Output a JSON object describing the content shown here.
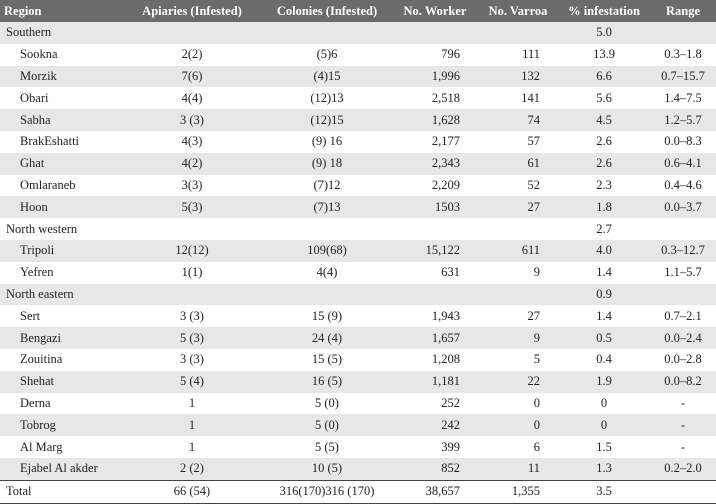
{
  "table": {
    "columns": [
      "Region",
      "Apiaries (Infested)",
      "Colonies (Infested)",
      "No. Worker",
      "No. Varroa",
      "% infestation",
      "Range"
    ],
    "rows": [
      {
        "region": "Southern",
        "infestation": "5.0"
      },
      {
        "cells": [
          "Sookna",
          "2(2)",
          "(5)6",
          "796",
          "111",
          "13.9",
          "0.3–1.8"
        ]
      },
      {
        "cells": [
          "Morzik",
          "7(6)",
          "(4)15",
          "1,996",
          "132",
          "6.6",
          "0.7–15.7"
        ]
      },
      {
        "cells": [
          "Obari",
          "4(4)",
          "(12)13",
          "2,518",
          "141",
          "5.6",
          "1.4–7.5"
        ]
      },
      {
        "cells": [
          "Sabha",
          "3 (3)",
          "(12)15",
          "1,628",
          "74",
          "4.5",
          "1.2–5.7"
        ]
      },
      {
        "cells": [
          "BrakEshatti",
          "4(3)",
          "(9) 16",
          "2,177",
          "57",
          "2.6",
          "0.0–8.3"
        ]
      },
      {
        "cells": [
          "Ghat",
          "4(2)",
          "(9) 18",
          "2,343",
          "61",
          "2.6",
          "0.6–4.1"
        ]
      },
      {
        "cells": [
          "Omlaraneb",
          "3(3)",
          "(7)12",
          "2,209",
          "52",
          "2.3",
          "0.4–4.6"
        ]
      },
      {
        "cells": [
          "Hoon",
          "5(3)",
          "(7)13",
          "1503",
          "27",
          "1.8",
          "0.0–3.7"
        ]
      },
      {
        "region": "North western",
        "infestation": "2.7"
      },
      {
        "cells": [
          "Tripoli",
          "12(12)",
          "109(68)",
          "15,122",
          "611",
          "4.0",
          "0.3–12.7"
        ]
      },
      {
        "cells": [
          "Yefren",
          "1(1)",
          "4(4)",
          "631",
          "9",
          "1.4",
          "1.1–5.7"
        ]
      },
      {
        "region": "North eastern",
        "infestation": "0.9"
      },
      {
        "cells": [
          "Sert",
          "3 (3)",
          "15 (9)",
          "1,943",
          "27",
          "1.4",
          "0.7–2.1"
        ]
      },
      {
        "cells": [
          "Bengazi",
          "5 (3)",
          "24 (4)",
          "1,657",
          "9",
          "0.5",
          "0.0–2.4"
        ]
      },
      {
        "cells": [
          "Zouitina",
          "3 (3)",
          "15 (5)",
          "1,208",
          "5",
          "0.4",
          "0.0–2.8"
        ]
      },
      {
        "cells": [
          "Shehat",
          "5 (4)",
          "16 (5)",
          "1,181",
          "22",
          "1.9",
          "0.0–8.2"
        ]
      },
      {
        "cells": [
          "Derna",
          "1",
          "5 (0)",
          "252",
          "0",
          "0",
          "-"
        ]
      },
      {
        "cells": [
          "Tobrog",
          "1",
          "5 (0)",
          "242",
          "0",
          "0",
          "-"
        ]
      },
      {
        "cells": [
          "Al Marg",
          "1",
          "5 (5)",
          "399",
          "6",
          "1.5",
          "-"
        ]
      },
      {
        "cells": [
          "Ejabel Al akder",
          "2 (2)",
          "10 (5)",
          "852",
          "11",
          "1.3",
          "0.2–2.0"
        ]
      }
    ],
    "total": [
      "Total",
      "66 (54)",
      "316(170)316 (170)",
      "38,657",
      "1,355",
      "3.5"
    ]
  }
}
